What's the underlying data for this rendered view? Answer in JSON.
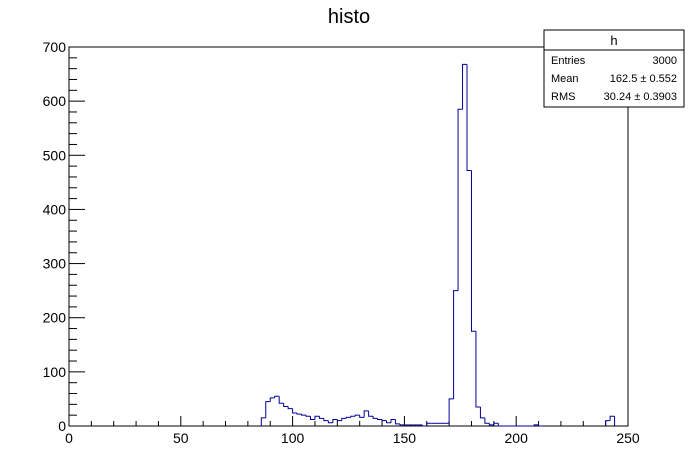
{
  "chart_data": {
    "type": "histogram",
    "title": "histo",
    "xlabel": "",
    "ylabel": "",
    "xlim": [
      0,
      250
    ],
    "ylim": [
      0,
      700
    ],
    "bin_width": 2,
    "x_ticks": [
      "0",
      "50",
      "100",
      "150",
      "200",
      "250"
    ],
    "y_ticks": [
      "0",
      "100",
      "200",
      "300",
      "400",
      "500",
      "600",
      "700"
    ],
    "line_color": "#000099",
    "bins": [
      {
        "x": 86,
        "y": 15
      },
      {
        "x": 88,
        "y": 45
      },
      {
        "x": 90,
        "y": 52
      },
      {
        "x": 92,
        "y": 55
      },
      {
        "x": 94,
        "y": 42
      },
      {
        "x": 96,
        "y": 36
      },
      {
        "x": 98,
        "y": 32
      },
      {
        "x": 100,
        "y": 24
      },
      {
        "x": 102,
        "y": 22
      },
      {
        "x": 104,
        "y": 20
      },
      {
        "x": 106,
        "y": 18
      },
      {
        "x": 108,
        "y": 12
      },
      {
        "x": 110,
        "y": 18
      },
      {
        "x": 112,
        "y": 14
      },
      {
        "x": 114,
        "y": 10
      },
      {
        "x": 116,
        "y": 6
      },
      {
        "x": 118,
        "y": 12
      },
      {
        "x": 120,
        "y": 10
      },
      {
        "x": 122,
        "y": 14
      },
      {
        "x": 124,
        "y": 16
      },
      {
        "x": 126,
        "y": 18
      },
      {
        "x": 128,
        "y": 20
      },
      {
        "x": 130,
        "y": 16
      },
      {
        "x": 132,
        "y": 28
      },
      {
        "x": 134,
        "y": 18
      },
      {
        "x": 136,
        "y": 14
      },
      {
        "x": 138,
        "y": 12
      },
      {
        "x": 140,
        "y": 10
      },
      {
        "x": 142,
        "y": 6
      },
      {
        "x": 144,
        "y": 12
      },
      {
        "x": 146,
        "y": 4
      },
      {
        "x": 148,
        "y": 2
      },
      {
        "x": 150,
        "y": 2
      },
      {
        "x": 152,
        "y": 2
      },
      {
        "x": 154,
        "y": 2
      },
      {
        "x": 156,
        "y": 2
      },
      {
        "x": 158,
        "y": 0
      },
      {
        "x": 160,
        "y": 5
      },
      {
        "x": 162,
        "y": 5
      },
      {
        "x": 164,
        "y": 5
      },
      {
        "x": 166,
        "y": 5
      },
      {
        "x": 168,
        "y": 5
      },
      {
        "x": 170,
        "y": 50
      },
      {
        "x": 172,
        "y": 250
      },
      {
        "x": 174,
        "y": 585
      },
      {
        "x": 176,
        "y": 668
      },
      {
        "x": 178,
        "y": 472
      },
      {
        "x": 180,
        "y": 175
      },
      {
        "x": 182,
        "y": 35
      },
      {
        "x": 184,
        "y": 15
      },
      {
        "x": 186,
        "y": 5
      },
      {
        "x": 188,
        "y": 2
      },
      {
        "x": 190,
        "y": 5
      },
      {
        "x": 192,
        "y": 0
      },
      {
        "x": 194,
        "y": 0
      },
      {
        "x": 196,
        "y": 0
      },
      {
        "x": 198,
        "y": 0
      },
      {
        "x": 200,
        "y": 0
      },
      {
        "x": 202,
        "y": 0
      },
      {
        "x": 204,
        "y": 0
      },
      {
        "x": 206,
        "y": 0
      },
      {
        "x": 208,
        "y": 2
      },
      {
        "x": 210,
        "y": 0
      },
      {
        "x": 240,
        "y": 10
      },
      {
        "x": 242,
        "y": 18
      }
    ],
    "stats_box": {
      "name": "h",
      "rows": [
        {
          "label": "Entries",
          "value": "3000"
        },
        {
          "label": "Mean",
          "value": "162.5 ±  0.552"
        },
        {
          "label": "RMS",
          "value": "30.24 ± 0.3903"
        }
      ]
    }
  }
}
